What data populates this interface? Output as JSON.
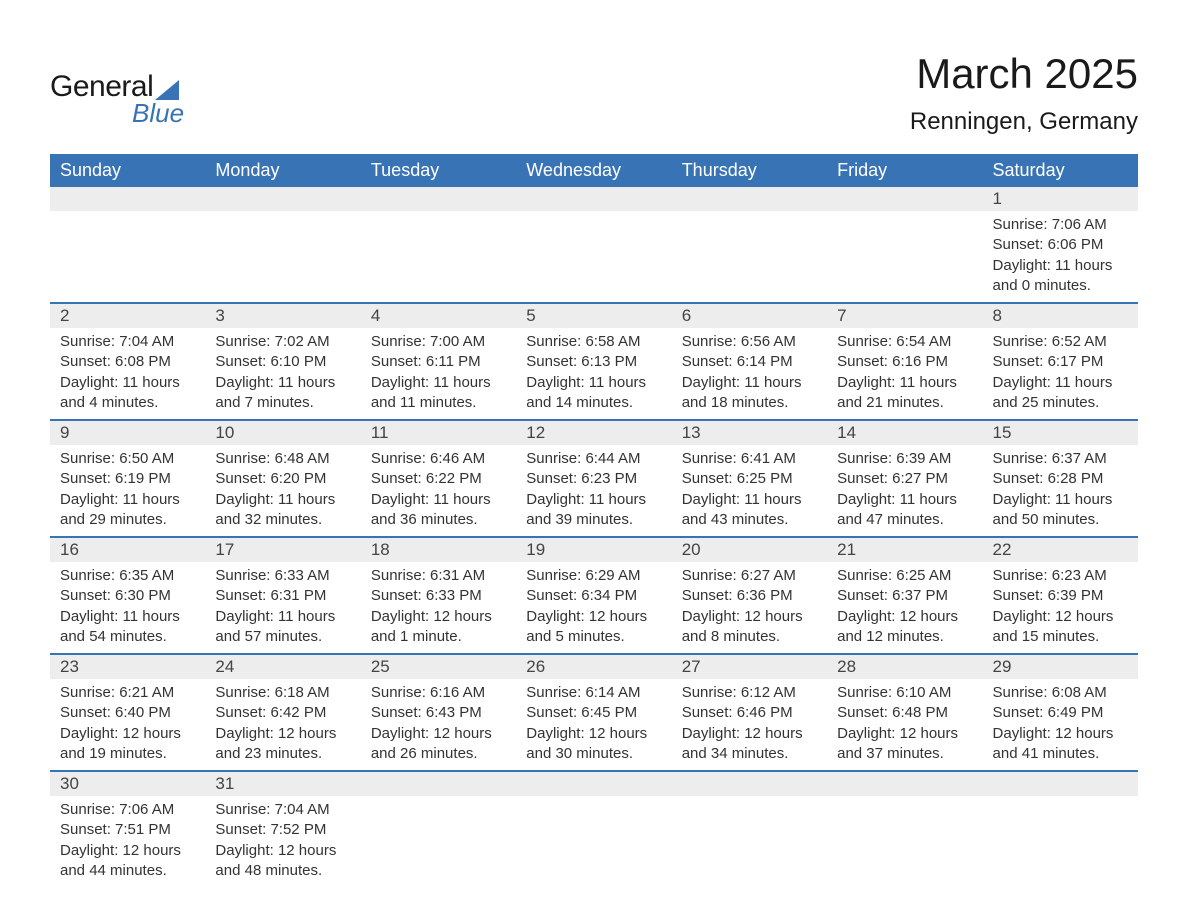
{
  "logo": {
    "general": "General",
    "blue": "Blue"
  },
  "title": {
    "month": "March 2025",
    "location": "Renningen, Germany"
  },
  "colors": {
    "header_bg": "#3874b5",
    "header_text": "#ffffff",
    "daynum_bg": "#ededed",
    "text": "#333333",
    "row_border": "#3874b5",
    "page_bg": "#ffffff"
  },
  "weekdays": [
    "Sunday",
    "Monday",
    "Tuesday",
    "Wednesday",
    "Thursday",
    "Friday",
    "Saturday"
  ],
  "layout": {
    "cols": 7,
    "rows": 6,
    "first_day_col": 6
  },
  "weeks": [
    [
      null,
      null,
      null,
      null,
      null,
      null,
      {
        "n": "1",
        "sr": "Sunrise: 7:06 AM",
        "ss": "Sunset: 6:06 PM",
        "d1": "Daylight: 11 hours",
        "d2": "and 0 minutes."
      }
    ],
    [
      {
        "n": "2",
        "sr": "Sunrise: 7:04 AM",
        "ss": "Sunset: 6:08 PM",
        "d1": "Daylight: 11 hours",
        "d2": "and 4 minutes."
      },
      {
        "n": "3",
        "sr": "Sunrise: 7:02 AM",
        "ss": "Sunset: 6:10 PM",
        "d1": "Daylight: 11 hours",
        "d2": "and 7 minutes."
      },
      {
        "n": "4",
        "sr": "Sunrise: 7:00 AM",
        "ss": "Sunset: 6:11 PM",
        "d1": "Daylight: 11 hours",
        "d2": "and 11 minutes."
      },
      {
        "n": "5",
        "sr": "Sunrise: 6:58 AM",
        "ss": "Sunset: 6:13 PM",
        "d1": "Daylight: 11 hours",
        "d2": "and 14 minutes."
      },
      {
        "n": "6",
        "sr": "Sunrise: 6:56 AM",
        "ss": "Sunset: 6:14 PM",
        "d1": "Daylight: 11 hours",
        "d2": "and 18 minutes."
      },
      {
        "n": "7",
        "sr": "Sunrise: 6:54 AM",
        "ss": "Sunset: 6:16 PM",
        "d1": "Daylight: 11 hours",
        "d2": "and 21 minutes."
      },
      {
        "n": "8",
        "sr": "Sunrise: 6:52 AM",
        "ss": "Sunset: 6:17 PM",
        "d1": "Daylight: 11 hours",
        "d2": "and 25 minutes."
      }
    ],
    [
      {
        "n": "9",
        "sr": "Sunrise: 6:50 AM",
        "ss": "Sunset: 6:19 PM",
        "d1": "Daylight: 11 hours",
        "d2": "and 29 minutes."
      },
      {
        "n": "10",
        "sr": "Sunrise: 6:48 AM",
        "ss": "Sunset: 6:20 PM",
        "d1": "Daylight: 11 hours",
        "d2": "and 32 minutes."
      },
      {
        "n": "11",
        "sr": "Sunrise: 6:46 AM",
        "ss": "Sunset: 6:22 PM",
        "d1": "Daylight: 11 hours",
        "d2": "and 36 minutes."
      },
      {
        "n": "12",
        "sr": "Sunrise: 6:44 AM",
        "ss": "Sunset: 6:23 PM",
        "d1": "Daylight: 11 hours",
        "d2": "and 39 minutes."
      },
      {
        "n": "13",
        "sr": "Sunrise: 6:41 AM",
        "ss": "Sunset: 6:25 PM",
        "d1": "Daylight: 11 hours",
        "d2": "and 43 minutes."
      },
      {
        "n": "14",
        "sr": "Sunrise: 6:39 AM",
        "ss": "Sunset: 6:27 PM",
        "d1": "Daylight: 11 hours",
        "d2": "and 47 minutes."
      },
      {
        "n": "15",
        "sr": "Sunrise: 6:37 AM",
        "ss": "Sunset: 6:28 PM",
        "d1": "Daylight: 11 hours",
        "d2": "and 50 minutes."
      }
    ],
    [
      {
        "n": "16",
        "sr": "Sunrise: 6:35 AM",
        "ss": "Sunset: 6:30 PM",
        "d1": "Daylight: 11 hours",
        "d2": "and 54 minutes."
      },
      {
        "n": "17",
        "sr": "Sunrise: 6:33 AM",
        "ss": "Sunset: 6:31 PM",
        "d1": "Daylight: 11 hours",
        "d2": "and 57 minutes."
      },
      {
        "n": "18",
        "sr": "Sunrise: 6:31 AM",
        "ss": "Sunset: 6:33 PM",
        "d1": "Daylight: 12 hours",
        "d2": "and 1 minute."
      },
      {
        "n": "19",
        "sr": "Sunrise: 6:29 AM",
        "ss": "Sunset: 6:34 PM",
        "d1": "Daylight: 12 hours",
        "d2": "and 5 minutes."
      },
      {
        "n": "20",
        "sr": "Sunrise: 6:27 AM",
        "ss": "Sunset: 6:36 PM",
        "d1": "Daylight: 12 hours",
        "d2": "and 8 minutes."
      },
      {
        "n": "21",
        "sr": "Sunrise: 6:25 AM",
        "ss": "Sunset: 6:37 PM",
        "d1": "Daylight: 12 hours",
        "d2": "and 12 minutes."
      },
      {
        "n": "22",
        "sr": "Sunrise: 6:23 AM",
        "ss": "Sunset: 6:39 PM",
        "d1": "Daylight: 12 hours",
        "d2": "and 15 minutes."
      }
    ],
    [
      {
        "n": "23",
        "sr": "Sunrise: 6:21 AM",
        "ss": "Sunset: 6:40 PM",
        "d1": "Daylight: 12 hours",
        "d2": "and 19 minutes."
      },
      {
        "n": "24",
        "sr": "Sunrise: 6:18 AM",
        "ss": "Sunset: 6:42 PM",
        "d1": "Daylight: 12 hours",
        "d2": "and 23 minutes."
      },
      {
        "n": "25",
        "sr": "Sunrise: 6:16 AM",
        "ss": "Sunset: 6:43 PM",
        "d1": "Daylight: 12 hours",
        "d2": "and 26 minutes."
      },
      {
        "n": "26",
        "sr": "Sunrise: 6:14 AM",
        "ss": "Sunset: 6:45 PM",
        "d1": "Daylight: 12 hours",
        "d2": "and 30 minutes."
      },
      {
        "n": "27",
        "sr": "Sunrise: 6:12 AM",
        "ss": "Sunset: 6:46 PM",
        "d1": "Daylight: 12 hours",
        "d2": "and 34 minutes."
      },
      {
        "n": "28",
        "sr": "Sunrise: 6:10 AM",
        "ss": "Sunset: 6:48 PM",
        "d1": "Daylight: 12 hours",
        "d2": "and 37 minutes."
      },
      {
        "n": "29",
        "sr": "Sunrise: 6:08 AM",
        "ss": "Sunset: 6:49 PM",
        "d1": "Daylight: 12 hours",
        "d2": "and 41 minutes."
      }
    ],
    [
      {
        "n": "30",
        "sr": "Sunrise: 7:06 AM",
        "ss": "Sunset: 7:51 PM",
        "d1": "Daylight: 12 hours",
        "d2": "and 44 minutes."
      },
      {
        "n": "31",
        "sr": "Sunrise: 7:04 AM",
        "ss": "Sunset: 7:52 PM",
        "d1": "Daylight: 12 hours",
        "d2": "and 48 minutes."
      },
      null,
      null,
      null,
      null,
      null
    ]
  ]
}
